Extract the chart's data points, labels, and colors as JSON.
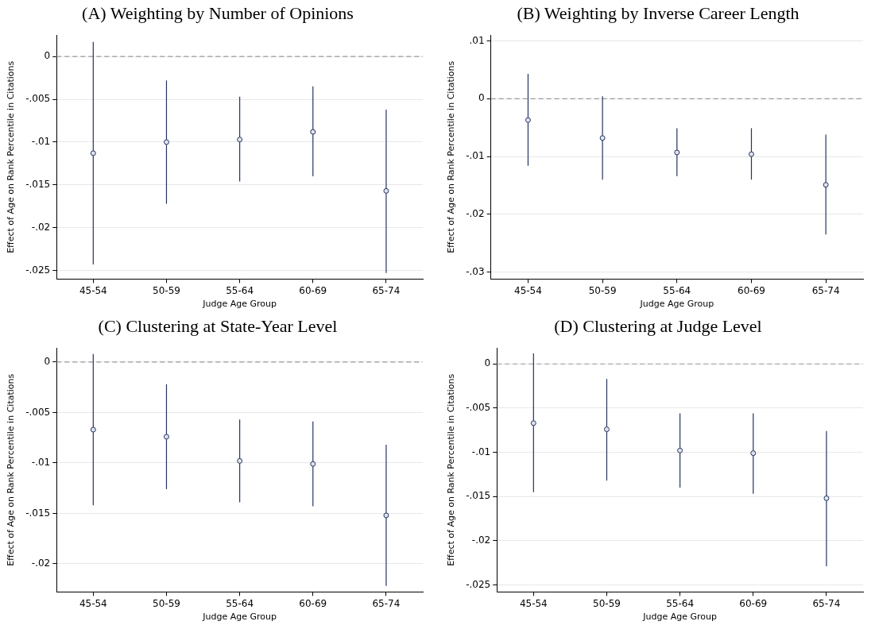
{
  "chart_data": [
    {
      "type": "scatter",
      "title": "(A) Weighting by Number of Opinions",
      "xlabel": "Judge Age Group",
      "ylabel": "Effect of Age on Rank Percentile in Citations",
      "categories": [
        "45-54",
        "50-59",
        "55-64",
        "60-69",
        "65-74"
      ],
      "series": [
        {
          "color": "#26355f",
          "values": [
            -0.0113,
            -0.01,
            -0.0097,
            -0.0088,
            -0.0157
          ],
          "errors": [
            [
              -0.0243,
              0.0017
            ],
            [
              -0.0172,
              -0.0028
            ],
            [
              -0.0146,
              -0.0047
            ],
            [
              -0.014,
              -0.0035
            ],
            [
              -0.0253,
              -0.0062
            ]
          ]
        }
      ],
      "ylim": [
        -0.026,
        0.0025
      ],
      "yticks": [
        {
          "value": -0.025,
          "label": "-.025"
        },
        {
          "value": -0.02,
          "label": "-.02"
        },
        {
          "value": -0.015,
          "label": "-.015"
        },
        {
          "value": -0.01,
          "label": "-.01"
        },
        {
          "value": -0.005,
          "label": "-.005"
        },
        {
          "value": 0,
          "label": "0"
        }
      ],
      "grid": "y",
      "marker": "circle",
      "ref_lines": [
        {
          "axis": "y",
          "value": 0,
          "color": "#999999",
          "line_style": "dashed"
        }
      ]
    },
    {
      "type": "scatter",
      "title": "(B) Weighting by Inverse Career Length",
      "xlabel": "Judge Age Group",
      "ylabel": "Effect of Age on Rank Percentile in Citations",
      "categories": [
        "45-54",
        "50-59",
        "55-64",
        "60-69",
        "65-74"
      ],
      "series": [
        {
          "color": "#26355f",
          "values": [
            -0.0037,
            -0.0068,
            -0.0093,
            -0.0096,
            -0.0149
          ],
          "errors": [
            [
              -0.0116,
              0.0043
            ],
            [
              -0.014,
              0.0004
            ],
            [
              -0.0134,
              -0.0051
            ],
            [
              -0.014,
              -0.0051
            ],
            [
              -0.0235,
              -0.0062
            ]
          ]
        }
      ],
      "ylim": [
        -0.0312,
        0.011
      ],
      "yticks": [
        {
          "value": -0.03,
          "label": "-.03"
        },
        {
          "value": -0.02,
          "label": "-.02"
        },
        {
          "value": -0.01,
          "label": "-.01"
        },
        {
          "value": 0,
          "label": "0"
        },
        {
          "value": 0.01,
          "label": ".01"
        }
      ],
      "grid": "y",
      "marker": "circle",
      "ref_lines": [
        {
          "axis": "y",
          "value": 0,
          "color": "#999999",
          "line_style": "dashed"
        }
      ]
    },
    {
      "type": "scatter",
      "title": "(C) Clustering at State-Year Level",
      "xlabel": "Judge Age Group",
      "ylabel": "Effect of Age on Rank Percentile in Citations",
      "categories": [
        "45-54",
        "50-59",
        "55-64",
        "60-69",
        "65-74"
      ],
      "series": [
        {
          "color": "#26355f",
          "values": [
            -0.0067,
            -0.0074,
            -0.0098,
            -0.0101,
            -0.0152
          ],
          "errors": [
            [
              -0.0142,
              0.0008
            ],
            [
              -0.0126,
              -0.0022
            ],
            [
              -0.0139,
              -0.0057
            ],
            [
              -0.0143,
              -0.0059
            ],
            [
              -0.0222,
              -0.0082
            ]
          ]
        }
      ],
      "ylim": [
        -0.0228,
        0.0014
      ],
      "yticks": [
        {
          "value": -0.02,
          "label": "-.02"
        },
        {
          "value": -0.015,
          "label": "-.015"
        },
        {
          "value": -0.01,
          "label": "-.01"
        },
        {
          "value": -0.005,
          "label": "-.005"
        },
        {
          "value": 0,
          "label": "0"
        }
      ],
      "grid": "y",
      "marker": "circle",
      "ref_lines": [
        {
          "axis": "y",
          "value": 0,
          "color": "#999999",
          "line_style": "dashed"
        }
      ]
    },
    {
      "type": "scatter",
      "title": "(D) Clustering at Judge Level",
      "xlabel": "Judge Age Group",
      "ylabel": "Effect of Age on Rank Percentile in Citations",
      "categories": [
        "45-54",
        "50-59",
        "55-64",
        "60-69",
        "65-74"
      ],
      "series": [
        {
          "color": "#26355f",
          "values": [
            -0.0067,
            -0.0074,
            -0.0098,
            -0.0101,
            -0.0152
          ],
          "errors": [
            [
              -0.0145,
              0.0012
            ],
            [
              -0.0132,
              -0.0017
            ],
            [
              -0.014,
              -0.0056
            ],
            [
              -0.0147,
              -0.0056
            ],
            [
              -0.0229,
              -0.0076
            ]
          ]
        }
      ],
      "ylim": [
        -0.0258,
        0.0018
      ],
      "yticks": [
        {
          "value": -0.025,
          "label": "-.025"
        },
        {
          "value": -0.02,
          "label": "-.02"
        },
        {
          "value": -0.015,
          "label": "-.015"
        },
        {
          "value": -0.01,
          "label": "-.01"
        },
        {
          "value": -0.005,
          "label": "-.005"
        },
        {
          "value": 0,
          "label": "0"
        }
      ],
      "grid": "y",
      "marker": "circle",
      "ref_lines": [
        {
          "axis": "y",
          "value": 0,
          "color": "#999999",
          "line_style": "dashed"
        }
      ]
    }
  ]
}
